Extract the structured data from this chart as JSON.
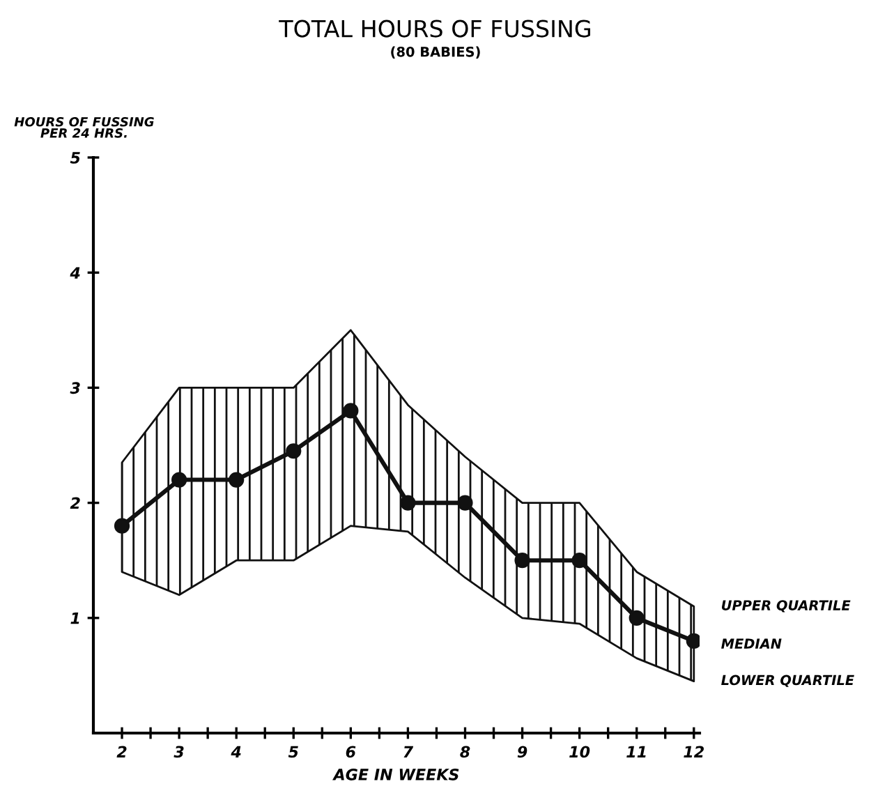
{
  "chart_data": {
    "type": "line",
    "title": "TOTAL HOURS OF FUSSING",
    "subtitle": "(80 BABIES)",
    "ylabel": "HOURS OF FUSSING\nPER 24 HRS.",
    "xlabel": "AGE IN WEEKS",
    "x": [
      2,
      3,
      4,
      5,
      6,
      7,
      8,
      9,
      10,
      11,
      12
    ],
    "series": [
      {
        "name": "MEDIAN",
        "color": "#111111",
        "values": [
          1.8,
          2.2,
          2.2,
          2.45,
          2.8,
          2.0,
          2.0,
          1.5,
          1.5,
          1.0,
          0.8
        ],
        "upper": [
          2.35,
          3.0,
          3.0,
          3.0,
          3.5,
          2.85,
          2.4,
          2.0,
          2.0,
          1.4,
          1.1
        ],
        "lower": [
          1.4,
          1.2,
          1.5,
          1.5,
          1.8,
          1.75,
          1.35,
          1.0,
          0.95,
          0.65,
          0.45
        ]
      }
    ],
    "annotations": [
      {
        "text": "UPPER QUARTILE",
        "x": 12,
        "y": 1.1
      },
      {
        "text": "LOWER QUARTILE",
        "x": 12,
        "y": 0.45
      }
    ],
    "xlim": [
      1.5,
      12.1
    ],
    "xticks": [
      2,
      {
        "value": 2.5,
        "label": null
      },
      3,
      {
        "value": 3.5,
        "label": null
      },
      4,
      {
        "value": 4.5,
        "label": null
      },
      5,
      {
        "value": 5.5,
        "label": null
      },
      6,
      {
        "value": 6.5,
        "label": null
      },
      7,
      {
        "value": 7.5,
        "label": null
      },
      8,
      {
        "value": 8.5,
        "label": null
      },
      9,
      {
        "value": 9.5,
        "label": null
      },
      10,
      {
        "value": 10.5,
        "label": null
      },
      11,
      {
        "value": 11.5,
        "label": null
      },
      12
    ],
    "ylim": [
      0,
      5
    ],
    "yticks": [
      1,
      2,
      3,
      4,
      5
    ],
    "grid": false,
    "legend": false,
    "marker": "circle",
    "line_style": "solid"
  }
}
